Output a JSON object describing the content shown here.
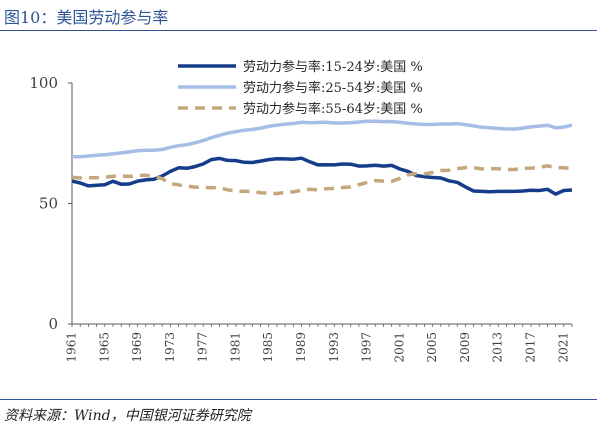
{
  "header": {
    "title": "图10：美国劳动参与率"
  },
  "footer": {
    "source": "资料来源：Wind，中国银河证券研究院"
  },
  "colors": {
    "title": "#2f5597",
    "series_1": "#163d8c",
    "series_2": "#a6bde6",
    "series_3": "#c4a77c",
    "axis": "#595959"
  },
  "chart_data": {
    "type": "line",
    "ylim": [
      0,
      100
    ],
    "yticks": [
      0,
      50,
      100
    ],
    "xlim": [
      1961,
      2022
    ],
    "xticks": [
      1961,
      1965,
      1969,
      1973,
      1977,
      1981,
      1985,
      1989,
      1993,
      1997,
      2001,
      2005,
      2009,
      2013,
      2017,
      2021
    ],
    "grid": false,
    "legend_position": "top-center",
    "x": [
      1961,
      1962,
      1963,
      1964,
      1965,
      1966,
      1967,
      1968,
      1969,
      1970,
      1971,
      1972,
      1973,
      1974,
      1975,
      1976,
      1977,
      1978,
      1979,
      1980,
      1981,
      1982,
      1983,
      1984,
      1985,
      1986,
      1987,
      1988,
      1989,
      1990,
      1991,
      1992,
      1993,
      1994,
      1995,
      1996,
      1997,
      1998,
      1999,
      2000,
      2001,
      2002,
      2003,
      2004,
      2005,
      2006,
      2007,
      2008,
      2009,
      2010,
      2011,
      2012,
      2013,
      2014,
      2015,
      2016,
      2017,
      2018,
      2019,
      2020,
      2021,
      2022
    ],
    "series": [
      {
        "name": "劳动力参与率:15-24岁:美国 %",
        "style": "solid",
        "values": [
          59.3,
          58.5,
          57.3,
          57.6,
          57.8,
          59.2,
          58.0,
          58.1,
          59.3,
          59.8,
          60.1,
          61.4,
          63.3,
          64.8,
          64.6,
          65.3,
          66.4,
          68.2,
          68.7,
          67.9,
          67.8,
          67.1,
          67.0,
          67.6,
          68.2,
          68.6,
          68.5,
          68.4,
          68.8,
          67.3,
          66.0,
          66.1,
          66.0,
          66.4,
          66.3,
          65.5,
          65.6,
          65.9,
          65.5,
          65.8,
          64.3,
          63.3,
          61.6,
          61.1,
          60.8,
          60.6,
          59.4,
          58.8,
          56.9,
          55.2,
          55.0,
          54.9,
          55.0,
          55.0,
          55.0,
          55.2,
          55.5,
          55.4,
          55.9,
          53.9,
          55.4,
          55.6
        ]
      },
      {
        "name": "劳动力参与率:25-54岁:美国 %",
        "style": "solid",
        "values": [
          69.5,
          69.4,
          69.7,
          70.0,
          70.2,
          70.6,
          71.0,
          71.4,
          71.9,
          72.1,
          72.1,
          72.4,
          73.3,
          74.0,
          74.4,
          75.2,
          76.1,
          77.3,
          78.3,
          79.2,
          79.8,
          80.4,
          80.7,
          81.3,
          82.0,
          82.5,
          82.9,
          83.2,
          83.7,
          83.5,
          83.6,
          83.7,
          83.4,
          83.4,
          83.5,
          83.8,
          84.1,
          84.1,
          84.0,
          84.0,
          83.7,
          83.3,
          83.0,
          82.8,
          82.8,
          83.0,
          83.0,
          83.1,
          82.7,
          82.2,
          81.6,
          81.4,
          81.1,
          80.9,
          80.9,
          81.3,
          81.8,
          82.1,
          82.5,
          81.4,
          81.7,
          82.5
        ]
      },
      {
        "name": "劳动力参与率:55-64岁:美国 %",
        "style": "dashed",
        "values": [
          60.9,
          60.6,
          60.7,
          60.7,
          60.9,
          61.3,
          61.4,
          61.2,
          61.6,
          61.7,
          61.2,
          60.3,
          58.3,
          57.7,
          57.2,
          56.8,
          56.7,
          56.5,
          56.5,
          55.7,
          55.1,
          55.1,
          54.9,
          54.5,
          54.3,
          54.1,
          54.6,
          54.8,
          55.5,
          55.9,
          55.6,
          56.1,
          56.3,
          56.6,
          56.9,
          57.8,
          58.7,
          59.5,
          59.3,
          59.2,
          60.4,
          61.9,
          62.4,
          62.3,
          62.9,
          63.7,
          63.8,
          64.5,
          64.9,
          64.9,
          64.3,
          64.5,
          64.4,
          64.1,
          64.1,
          64.6,
          64.7,
          65.0,
          65.6,
          64.9,
          64.8,
          64.5
        ]
      }
    ]
  }
}
